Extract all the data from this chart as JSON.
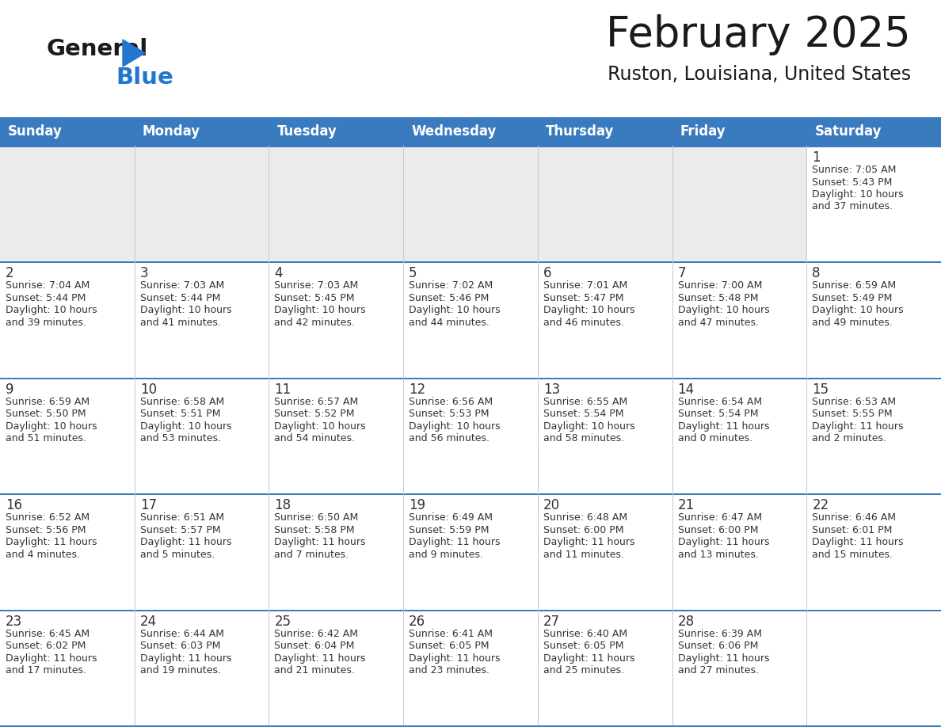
{
  "title": "February 2025",
  "subtitle": "Ruston, Louisiana, United States",
  "days_of_week": [
    "Sunday",
    "Monday",
    "Tuesday",
    "Wednesday",
    "Thursday",
    "Friday",
    "Saturday"
  ],
  "header_bg": "#3a7abf",
  "header_text_color": "#ffffff",
  "cell_bg_light": "#ebebeb",
  "cell_bg_white": "#ffffff",
  "separator_color": "#3a7abf",
  "grid_line_color": "#3a7abf",
  "text_color": "#333333",
  "title_color": "#1a1a1a",
  "logo_blue": "#2277cc",
  "calendar_data": [
    [
      {
        "day": null,
        "info": null
      },
      {
        "day": null,
        "info": null
      },
      {
        "day": null,
        "info": null
      },
      {
        "day": null,
        "info": null
      },
      {
        "day": null,
        "info": null
      },
      {
        "day": null,
        "info": null
      },
      {
        "day": 1,
        "info": "Sunrise: 7:05 AM\nSunset: 5:43 PM\nDaylight: 10 hours\nand 37 minutes."
      }
    ],
    [
      {
        "day": 2,
        "info": "Sunrise: 7:04 AM\nSunset: 5:44 PM\nDaylight: 10 hours\nand 39 minutes."
      },
      {
        "day": 3,
        "info": "Sunrise: 7:03 AM\nSunset: 5:44 PM\nDaylight: 10 hours\nand 41 minutes."
      },
      {
        "day": 4,
        "info": "Sunrise: 7:03 AM\nSunset: 5:45 PM\nDaylight: 10 hours\nand 42 minutes."
      },
      {
        "day": 5,
        "info": "Sunrise: 7:02 AM\nSunset: 5:46 PM\nDaylight: 10 hours\nand 44 minutes."
      },
      {
        "day": 6,
        "info": "Sunrise: 7:01 AM\nSunset: 5:47 PM\nDaylight: 10 hours\nand 46 minutes."
      },
      {
        "day": 7,
        "info": "Sunrise: 7:00 AM\nSunset: 5:48 PM\nDaylight: 10 hours\nand 47 minutes."
      },
      {
        "day": 8,
        "info": "Sunrise: 6:59 AM\nSunset: 5:49 PM\nDaylight: 10 hours\nand 49 minutes."
      }
    ],
    [
      {
        "day": 9,
        "info": "Sunrise: 6:59 AM\nSunset: 5:50 PM\nDaylight: 10 hours\nand 51 minutes."
      },
      {
        "day": 10,
        "info": "Sunrise: 6:58 AM\nSunset: 5:51 PM\nDaylight: 10 hours\nand 53 minutes."
      },
      {
        "day": 11,
        "info": "Sunrise: 6:57 AM\nSunset: 5:52 PM\nDaylight: 10 hours\nand 54 minutes."
      },
      {
        "day": 12,
        "info": "Sunrise: 6:56 AM\nSunset: 5:53 PM\nDaylight: 10 hours\nand 56 minutes."
      },
      {
        "day": 13,
        "info": "Sunrise: 6:55 AM\nSunset: 5:54 PM\nDaylight: 10 hours\nand 58 minutes."
      },
      {
        "day": 14,
        "info": "Sunrise: 6:54 AM\nSunset: 5:54 PM\nDaylight: 11 hours\nand 0 minutes."
      },
      {
        "day": 15,
        "info": "Sunrise: 6:53 AM\nSunset: 5:55 PM\nDaylight: 11 hours\nand 2 minutes."
      }
    ],
    [
      {
        "day": 16,
        "info": "Sunrise: 6:52 AM\nSunset: 5:56 PM\nDaylight: 11 hours\nand 4 minutes."
      },
      {
        "day": 17,
        "info": "Sunrise: 6:51 AM\nSunset: 5:57 PM\nDaylight: 11 hours\nand 5 minutes."
      },
      {
        "day": 18,
        "info": "Sunrise: 6:50 AM\nSunset: 5:58 PM\nDaylight: 11 hours\nand 7 minutes."
      },
      {
        "day": 19,
        "info": "Sunrise: 6:49 AM\nSunset: 5:59 PM\nDaylight: 11 hours\nand 9 minutes."
      },
      {
        "day": 20,
        "info": "Sunrise: 6:48 AM\nSunset: 6:00 PM\nDaylight: 11 hours\nand 11 minutes."
      },
      {
        "day": 21,
        "info": "Sunrise: 6:47 AM\nSunset: 6:00 PM\nDaylight: 11 hours\nand 13 minutes."
      },
      {
        "day": 22,
        "info": "Sunrise: 6:46 AM\nSunset: 6:01 PM\nDaylight: 11 hours\nand 15 minutes."
      }
    ],
    [
      {
        "day": 23,
        "info": "Sunrise: 6:45 AM\nSunset: 6:02 PM\nDaylight: 11 hours\nand 17 minutes."
      },
      {
        "day": 24,
        "info": "Sunrise: 6:44 AM\nSunset: 6:03 PM\nDaylight: 11 hours\nand 19 minutes."
      },
      {
        "day": 25,
        "info": "Sunrise: 6:42 AM\nSunset: 6:04 PM\nDaylight: 11 hours\nand 21 minutes."
      },
      {
        "day": 26,
        "info": "Sunrise: 6:41 AM\nSunset: 6:05 PM\nDaylight: 11 hours\nand 23 minutes."
      },
      {
        "day": 27,
        "info": "Sunrise: 6:40 AM\nSunset: 6:05 PM\nDaylight: 11 hours\nand 25 minutes."
      },
      {
        "day": 28,
        "info": "Sunrise: 6:39 AM\nSunset: 6:06 PM\nDaylight: 11 hours\nand 27 minutes."
      },
      {
        "day": null,
        "info": null
      }
    ]
  ]
}
